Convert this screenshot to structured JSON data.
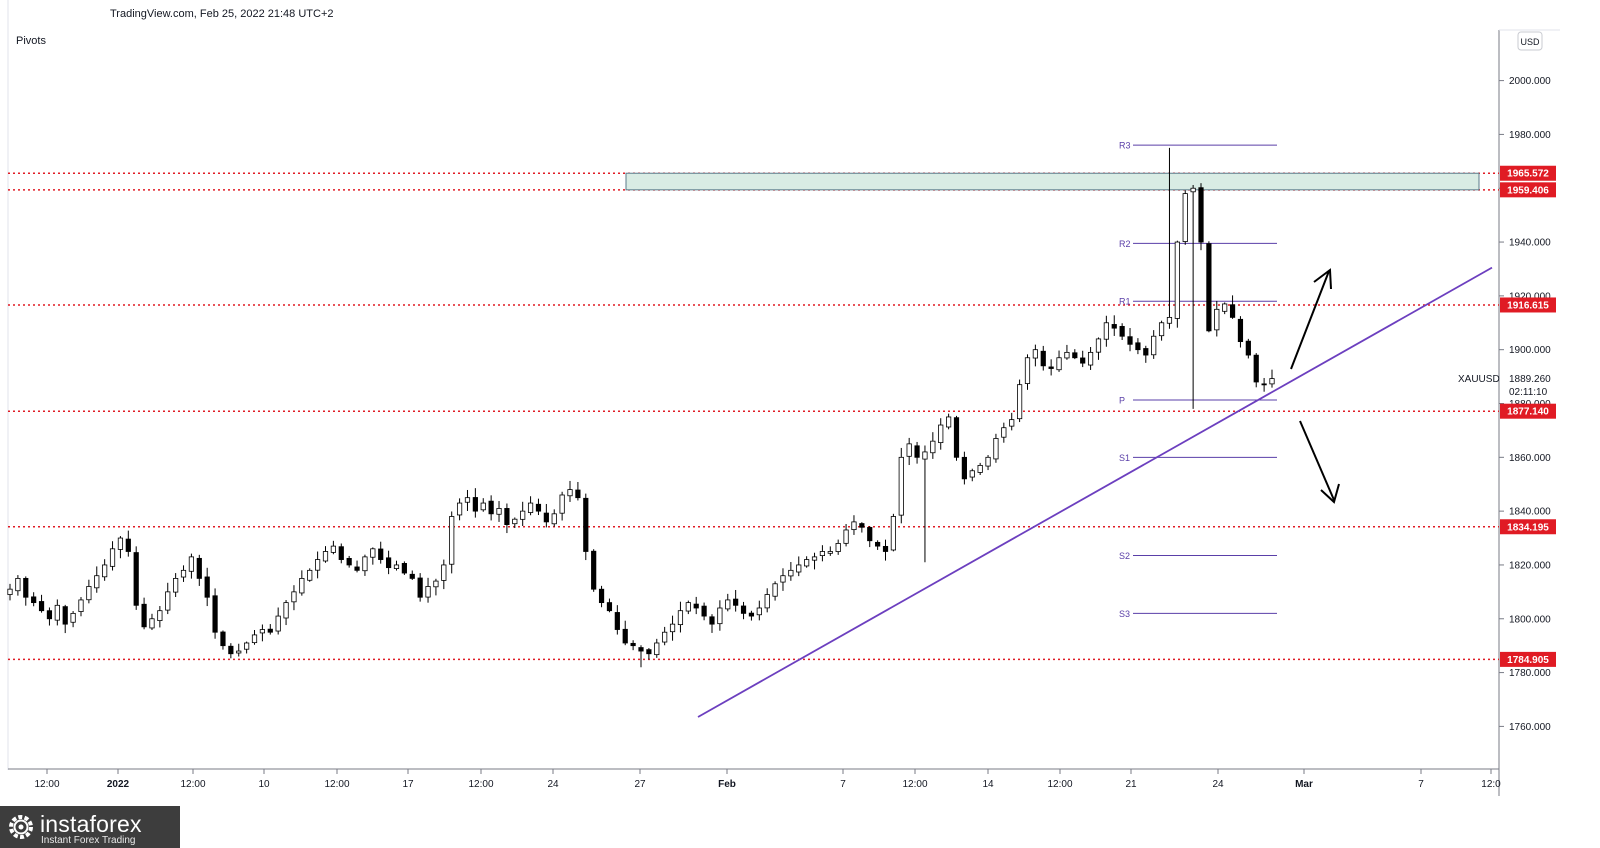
{
  "header": {
    "source_line": "TradingView.com, Feb 25, 2022 21:48 UTC+2",
    "indicator": "Pivots",
    "currency": "USD",
    "symbol": "XAUUSD",
    "last_price": "1889.260",
    "countdown": "02:11:10"
  },
  "watermark": {
    "brand": "instaforex",
    "tagline": "Instant Forex Trading"
  },
  "chart_data": {
    "type": "candlestick",
    "symbol": "XAUUSD",
    "ylim": [
      1745,
      2012
    ],
    "y_ticks": [
      1760,
      1780,
      1800,
      1820,
      1840,
      1860,
      1880,
      1900,
      1920,
      1940,
      1960,
      1980,
      2000
    ],
    "y_tick_labels": [
      "1760.000",
      "1780.000",
      "1800.000",
      "1820.000",
      "1840.000",
      "1860.000",
      "1880.000",
      "1900.000",
      "1920.000",
      "1940.000",
      "1960.000",
      "1980.000",
      "2000.000"
    ],
    "x_tick_labels": [
      "12:00",
      "2022",
      "12:00",
      "10",
      "12:00",
      "17",
      "12:00",
      "24",
      "27",
      "Feb",
      "7",
      "12:00",
      "14",
      "12:00",
      "21",
      "24",
      "Mar",
      "7",
      "12:0"
    ],
    "bold_x_labels": [
      "2022",
      "Feb",
      "Mar"
    ],
    "horizontal_levels": [
      {
        "price": 1965.572,
        "label": "1965.572",
        "color": "#e01b24",
        "style": "dotted"
      },
      {
        "price": 1959.406,
        "label": "1959.406",
        "color": "#e01b24",
        "style": "dotted"
      },
      {
        "price": 1916.615,
        "label": "1916.615",
        "color": "#e01b24",
        "style": "dotted"
      },
      {
        "price": 1877.14,
        "label": "1877.140",
        "color": "#e01b24",
        "style": "dotted"
      },
      {
        "price": 1834.195,
        "label": "1834.195",
        "color": "#e01b24",
        "style": "dotted"
      },
      {
        "price": 1784.905,
        "label": "1784.905",
        "color": "#e01b24",
        "style": "dotted"
      }
    ],
    "resistance_zone": {
      "from": 1959.406,
      "to": 1965.572,
      "fill": "#d9ece4",
      "border": "#5b7a8a"
    },
    "pivots": [
      {
        "label": "R3",
        "price": 1976.0
      },
      {
        "label": "R2",
        "price": 1939.5
      },
      {
        "label": "R1",
        "price": 1918.0
      },
      {
        "label": "P",
        "price": 1881.3
      },
      {
        "label": "S1",
        "price": 1860.0
      },
      {
        "label": "S2",
        "price": 1823.5
      },
      {
        "label": "S3",
        "price": 1802.0
      }
    ],
    "trendline": {
      "color": "#6c3fbf",
      "from_price": 1763.5,
      "to_price": 1930.5
    },
    "annotations": [
      "up-arrow",
      "down-arrow"
    ],
    "price_path": [
      1811,
      1815,
      1808,
      1806,
      1803,
      1800,
      1805,
      1798,
      1802,
      1807,
      1812,
      1816,
      1820,
      1826,
      1830,
      1825,
      1805,
      1797,
      1800,
      1803,
      1810,
      1815,
      1818,
      1823,
      1815,
      1808,
      1795,
      1790,
      1787,
      1788,
      1791,
      1794,
      1796,
      1795,
      1801,
      1806,
      1810,
      1815,
      1818,
      1822,
      1825,
      1827,
      1822,
      1820,
      1818,
      1823,
      1826,
      1822,
      1819,
      1820,
      1817,
      1815,
      1808,
      1812,
      1814,
      1820,
      1838,
      1843,
      1845,
      1840,
      1843,
      1839,
      1841,
      1835,
      1837,
      1840,
      1843,
      1840,
      1836,
      1839,
      1846,
      1848,
      1845,
      1825,
      1811,
      1806,
      1803,
      1796,
      1791,
      1790,
      1788,
      1787,
      1791,
      1795,
      1798,
      1803,
      1806,
      1804,
      1801,
      1798,
      1804,
      1807,
      1805,
      1802,
      1801,
      1804,
      1809,
      1813,
      1816,
      1818,
      1820,
      1822,
      1823,
      1825,
      1825,
      1828,
      1833,
      1836,
      1834,
      1829,
      1827,
      1825,
      1838,
      1860,
      1865,
      1860,
      1862,
      1866,
      1872,
      1875,
      1860,
      1852,
      1855,
      1857,
      1860,
      1867,
      1871,
      1874,
      1887,
      1897,
      1900,
      1894,
      1893,
      1897,
      1899,
      1897,
      1895,
      1899,
      1904,
      1910,
      1908,
      1905,
      1902,
      1900,
      1898,
      1905,
      1910,
      1912,
      1940,
      1958,
      1960,
      1940,
      1907,
      1915,
      1917,
      1912,
      1903,
      1898,
      1888,
      1887,
      1889.26
    ]
  }
}
